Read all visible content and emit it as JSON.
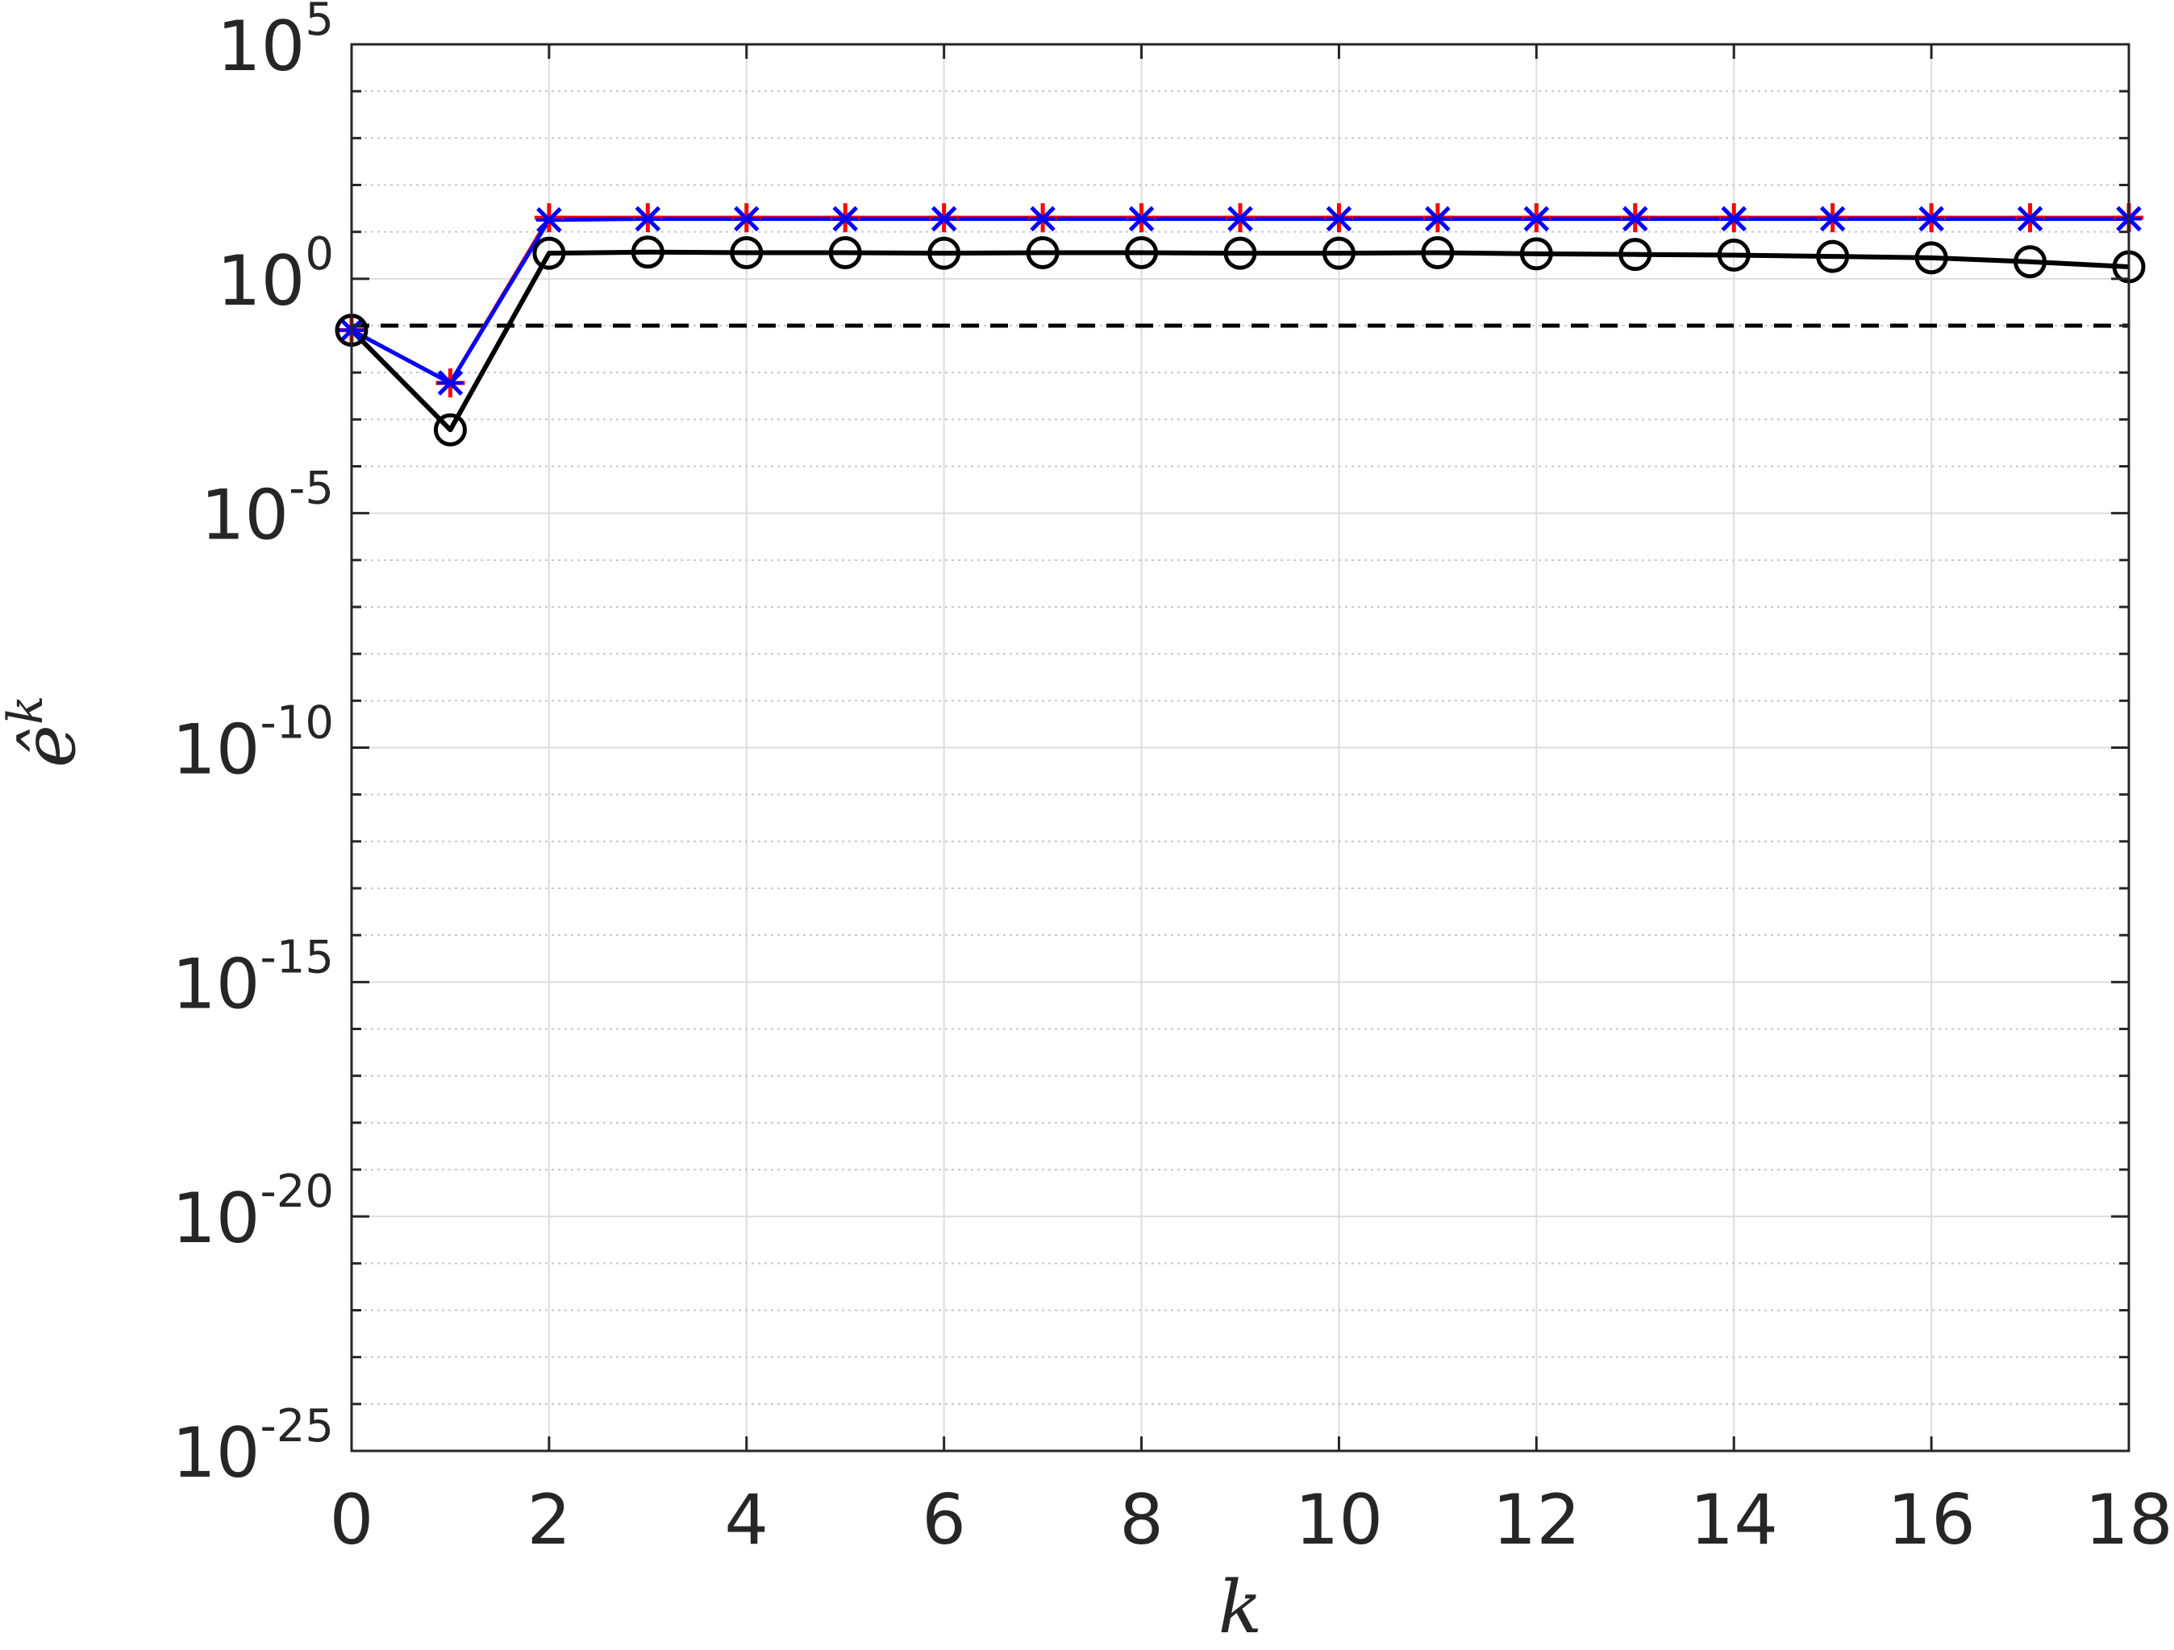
{
  "chart_data": {
    "type": "line",
    "xlabel": "k",
    "ylabel": "ê^k",
    "ylabel_base": "ê",
    "ylabel_superscript": "k",
    "y_scale": "log",
    "xlim": [
      0,
      18
    ],
    "ylim": [
      1e-25,
      100000
    ],
    "grid": true,
    "x_ticks": [
      0,
      2,
      4,
      6,
      8,
      10,
      12,
      14,
      16,
      18
    ],
    "x_tick_labels": [
      "0",
      "2",
      "4",
      "6",
      "8",
      "10",
      "12",
      "14",
      "16",
      "18"
    ],
    "y_ticks": [
      {
        "base": "10",
        "exp": "5",
        "value": 100000
      },
      {
        "base": "10",
        "exp": "0",
        "value": 1
      },
      {
        "base": "10",
        "exp": "-5",
        "value": 1e-05
      },
      {
        "base": "10",
        "exp": "-10",
        "value": 1e-10
      },
      {
        "base": "10",
        "exp": "-15",
        "value": 1e-15
      },
      {
        "base": "10",
        "exp": "-20",
        "value": 1e-20
      },
      {
        "base": "10",
        "exp": "-25",
        "value": 1e-25
      }
    ],
    "reference_line": {
      "y": 0.1,
      "style": "dashed",
      "color": "#000000"
    },
    "series": [
      {
        "color": "#ff0000",
        "marker": "plus",
        "x": [
          0,
          1,
          2,
          3,
          4,
          5,
          6,
          7,
          8,
          9,
          10,
          11,
          12,
          13,
          14,
          15,
          16,
          17,
          18
        ],
        "y": [
          0.08,
          0.006,
          20,
          20,
          20,
          20,
          20,
          20,
          20,
          20,
          20,
          20,
          20,
          20,
          20,
          20,
          20,
          20,
          20
        ]
      },
      {
        "color": "#0000ff",
        "marker": "star",
        "x": [
          0,
          1,
          2,
          3,
          4,
          5,
          6,
          7,
          8,
          9,
          10,
          11,
          12,
          13,
          14,
          15,
          16,
          17,
          18
        ],
        "y": [
          0.08,
          0.006,
          18,
          19,
          19,
          19,
          19,
          19,
          19,
          19,
          19,
          19,
          19,
          19,
          19,
          19,
          19,
          19,
          19
        ]
      },
      {
        "color": "#000000",
        "marker": "circle",
        "x": [
          0,
          1,
          2,
          3,
          4,
          5,
          6,
          7,
          8,
          9,
          10,
          11,
          12,
          13,
          14,
          15,
          16,
          17,
          18
        ],
        "y": [
          0.08,
          0.0006,
          3.5,
          3.7,
          3.6,
          3.6,
          3.5,
          3.6,
          3.6,
          3.5,
          3.5,
          3.6,
          3.4,
          3.3,
          3.2,
          3.0,
          2.8,
          2.3,
          1.8
        ]
      }
    ]
  }
}
